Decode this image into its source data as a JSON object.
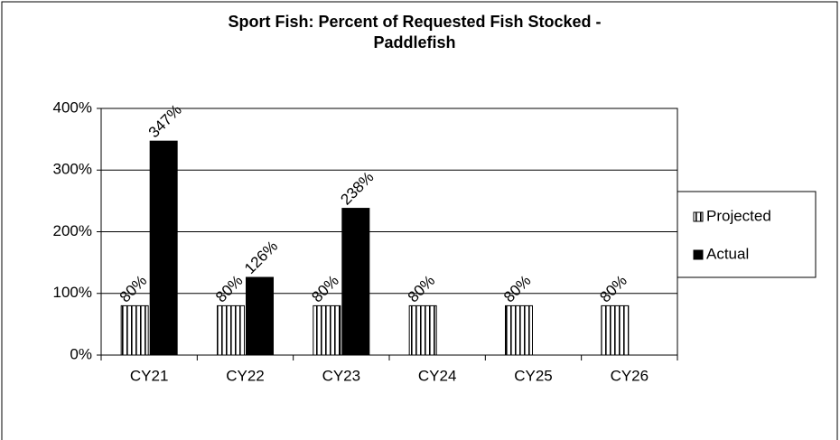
{
  "chart_data": {
    "type": "bar",
    "title": "Sport Fish: Percent of Requested Fish Stocked -",
    "subtitle": "Paddlefish",
    "categories": [
      "CY21",
      "CY22",
      "CY23",
      "CY24",
      "CY25",
      "CY26"
    ],
    "series": [
      {
        "name": "Projected",
        "color": "#000000",
        "pattern": "vertical-stripes",
        "values": [
          80,
          80,
          80,
          80,
          80,
          80
        ],
        "value_labels": [
          "80%",
          "80%",
          "80%",
          "80%",
          "80%",
          "80%"
        ]
      },
      {
        "name": "Actual",
        "color": "#000000",
        "values": [
          347,
          126,
          238,
          null,
          null,
          null
        ],
        "value_labels": [
          "347%",
          "126%",
          "238%",
          null,
          null,
          null
        ]
      }
    ],
    "ylim": [
      0,
      400
    ],
    "yticks": [
      {
        "value": 0,
        "label": "0%"
      },
      {
        "value": 100,
        "label": "100%"
      },
      {
        "value": 200,
        "label": "200%"
      },
      {
        "value": 300,
        "label": "300%"
      },
      {
        "value": 400,
        "label": "400%"
      }
    ],
    "grid": true,
    "legend": "right"
  }
}
